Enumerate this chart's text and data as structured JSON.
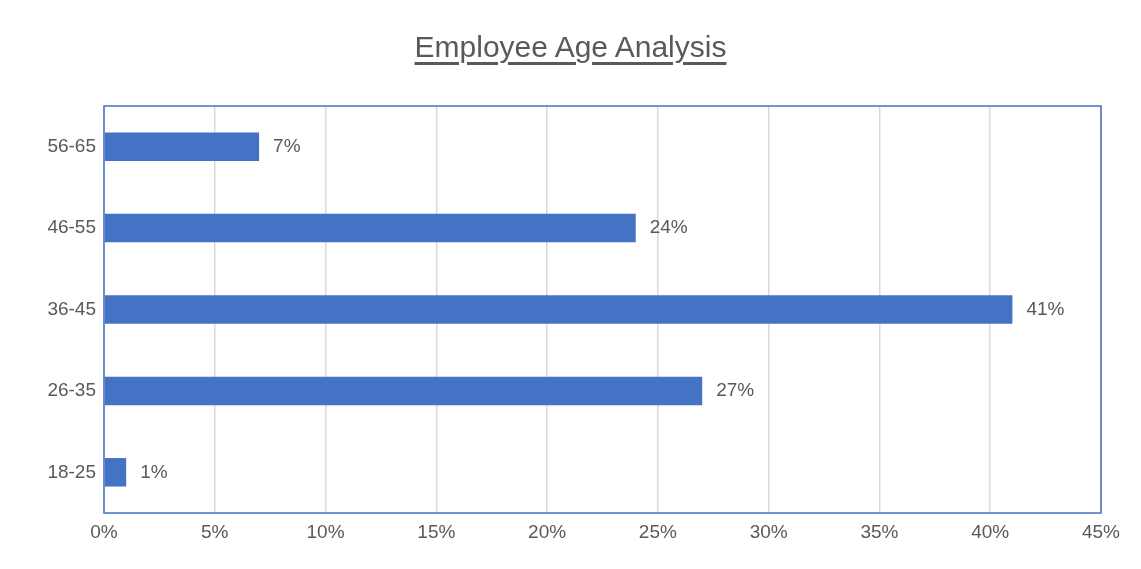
{
  "chart_data": {
    "type": "bar",
    "orientation": "horizontal",
    "title": "Employee Age Analysis",
    "categories": [
      "56-65",
      "46-55",
      "36-45",
      "26-35",
      "18-25"
    ],
    "values": [
      7,
      24,
      41,
      27,
      1
    ],
    "value_labels": [
      "7%",
      "24%",
      "41%",
      "27%",
      "1%"
    ],
    "color": "#4472c4",
    "xlim": [
      0,
      45
    ],
    "xticks": [
      {
        "value": 0,
        "label": "0%"
      },
      {
        "value": 5,
        "label": "5%"
      },
      {
        "value": 10,
        "label": "10%"
      },
      {
        "value": 15,
        "label": "15%"
      },
      {
        "value": 20,
        "label": "20%"
      },
      {
        "value": 25,
        "label": "25%"
      },
      {
        "value": 30,
        "label": "30%"
      },
      {
        "value": 35,
        "label": "35%"
      },
      {
        "value": 40,
        "label": "40%"
      },
      {
        "value": 45,
        "label": "45%"
      }
    ],
    "grid": "x",
    "legend": false
  }
}
